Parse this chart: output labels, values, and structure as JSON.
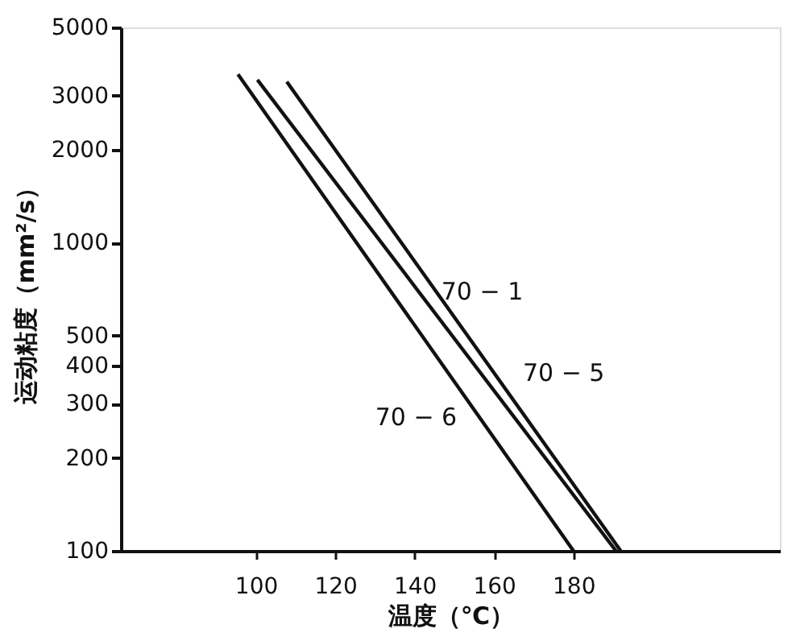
{
  "chart_data": {
    "type": "line",
    "xlabel": "温度（℃）",
    "ylabel": "运动粘度（mm²/s）",
    "series": [
      {
        "name": "70 − 1",
        "color": "#111111",
        "x": [
          100.4,
          190.7
        ],
        "values": [
          3380,
          100
        ]
      },
      {
        "name": "70 − 5",
        "color": "#111111",
        "x": [
          107.8,
          191.9
        ],
        "values": [
          3330,
          100
        ]
      },
      {
        "name": "70 − 6",
        "color": "#111111",
        "x": [
          95.5,
          180
        ],
        "values": [
          3520,
          100
        ]
      }
    ],
    "xlim": [
      66,
      232
    ],
    "xticks": [
      100,
      120,
      140,
      160,
      180
    ],
    "ylim": [
      100,
      5000
    ],
    "yticks": [
      100,
      200,
      300,
      400,
      500,
      1000,
      2000,
      3000,
      5000
    ],
    "log": "y",
    "grid": false,
    "legend": false,
    "marker": "none",
    "line_style": "solid"
  }
}
